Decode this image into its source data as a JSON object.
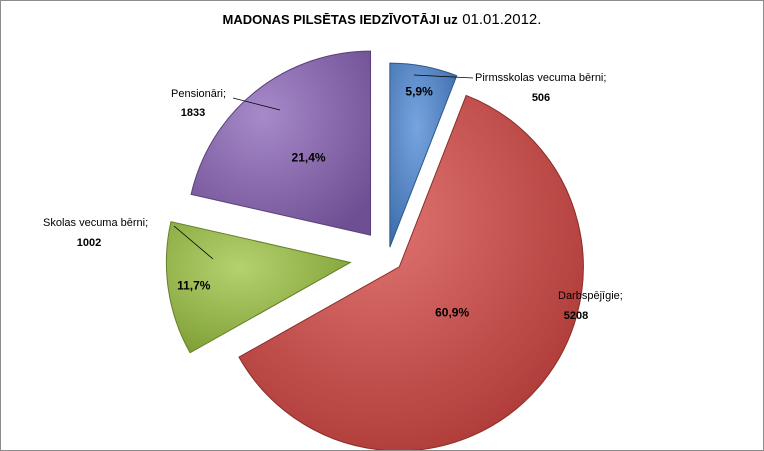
{
  "chart_data": {
    "type": "pie",
    "title_main": "MADONAS PILSĒTAS IEDZĪVOTĀJI  uz",
    "title_date": "01.01.2012.",
    "categories": [
      "Pirmsskolas vecuma bērni;",
      "Darbspējīgie;",
      "Skolas vecuma bērni;",
      "Pensionāri;"
    ],
    "values": [
      506,
      5208,
      1002,
      1833
    ],
    "value_labels": [
      "506",
      "5208",
      "1002",
      "1833"
    ],
    "percent_labels": [
      "5,9%",
      "60,9%",
      "11,7%",
      "21,4%"
    ],
    "colors": [
      "#4a86d4",
      "#d64541",
      "#9bc33f",
      "#8a63b8"
    ],
    "exploded": true,
    "legend": "none"
  }
}
